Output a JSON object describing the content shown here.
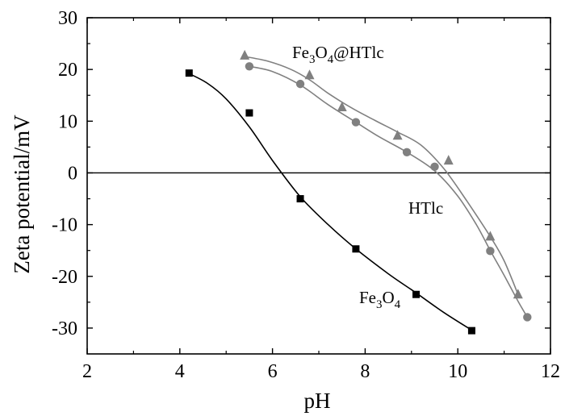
{
  "chart_data": {
    "type": "scatter",
    "xlabel": "pH",
    "ylabel": "Zeta potential/mV",
    "xlim": [
      2,
      12
    ],
    "ylim": [
      -35,
      30
    ],
    "xticks": [
      2,
      4,
      6,
      8,
      10,
      12
    ],
    "yticks": [
      30,
      20,
      10,
      0,
      -10,
      -20,
      -30
    ],
    "xtick_labels": [
      "2",
      "4",
      "6",
      "8",
      "10",
      "12"
    ],
    "ytick_labels": [
      "30",
      "20",
      "10",
      "0",
      "-10",
      "-20",
      "-30"
    ],
    "zero_line": 0,
    "grid": false,
    "legend": "none (inline annotations)",
    "series": [
      {
        "name": "Fe3O4",
        "label_parts": [
          [
            "Fe",
            false
          ],
          [
            "3",
            true
          ],
          [
            "O",
            false
          ],
          [
            "4",
            true
          ]
        ],
        "marker": "square",
        "color": "#000000",
        "x": [
          4.2,
          5.5,
          6.6,
          7.8,
          9.1,
          10.3
        ],
        "y": [
          19.3,
          11.6,
          -5.0,
          -14.7,
          -23.5,
          -30.5
        ],
        "curve_x": [
          4.2,
          4.6,
          5.0,
          5.5,
          6.0,
          6.6,
          7.2,
          7.8,
          8.5,
          9.1,
          9.7,
          10.3
        ],
        "curve_y": [
          19.2,
          17.3,
          14.3,
          8.9,
          2.4,
          -4.6,
          -10.0,
          -14.7,
          -19.5,
          -23.2,
          -27.0,
          -30.4
        ]
      },
      {
        "name": "Fe3O4@HTlc",
        "label_parts": [
          [
            "Fe",
            false
          ],
          [
            "3",
            true
          ],
          [
            "O",
            false
          ],
          [
            "4",
            true
          ],
          [
            "@HTlc",
            false
          ]
        ],
        "marker": "triangle",
        "color": "#808080",
        "x": [
          5.4,
          6.8,
          7.5,
          8.7,
          9.8,
          10.7,
          11.3
        ],
        "y": [
          22.7,
          18.9,
          12.7,
          7.2,
          2.4,
          -12.3,
          -23.5
        ],
        "curve_x": [
          5.4,
          5.9,
          6.4,
          6.8,
          7.2,
          7.7,
          8.2,
          8.7,
          9.2,
          9.7,
          10.2,
          10.7,
          11.0,
          11.3
        ],
        "curve_y": [
          22.5,
          21.6,
          20.0,
          18.0,
          15.4,
          12.6,
          10.2,
          7.9,
          5.4,
          0.8,
          -5.5,
          -12.3,
          -17.0,
          -23.5
        ]
      },
      {
        "name": "HTlc",
        "label_parts": [
          [
            "HTlc",
            false
          ]
        ],
        "marker": "circle",
        "color": "#808080",
        "x": [
          5.5,
          6.6,
          7.8,
          8.9,
          9.5,
          10.7,
          11.5
        ],
        "y": [
          20.6,
          17.2,
          9.8,
          4.0,
          1.2,
          -15.1,
          -27.9
        ],
        "curve_x": [
          5.5,
          6.0,
          6.6,
          7.2,
          7.8,
          8.3,
          8.9,
          9.5,
          10.0,
          10.4,
          10.7,
          11.0,
          11.3,
          11.5
        ],
        "curve_y": [
          20.6,
          19.6,
          17.0,
          13.2,
          9.8,
          7.0,
          4.0,
          0.4,
          -4.5,
          -10.0,
          -15.0,
          -19.8,
          -24.8,
          -27.9
        ]
      }
    ]
  }
}
